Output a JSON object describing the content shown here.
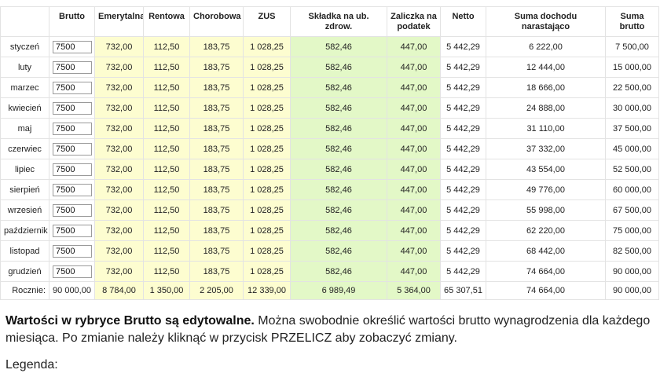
{
  "columns": {
    "brutto": "Brutto",
    "emerytalna": "Emerytalna",
    "rentowa": "Rentowa",
    "chorobowa": "Chorobowa",
    "zus": "ZUS",
    "skladka": "Składka na ub. zdrow.",
    "zaliczka": "Zaliczka na podatek",
    "netto": "Netto",
    "suma_dochodu": "Suma dochodu narastająco",
    "suma_brutto": "Suma brutto"
  },
  "rows": [
    {
      "month": "styczeń",
      "brutto": "7500",
      "emerytalna": "732,00",
      "rentowa": "112,50",
      "chorobowa": "183,75",
      "zus": "1 028,25",
      "skladka": "582,46",
      "zaliczka": "447,00",
      "netto": "5 442,29",
      "suma_dochodu": "6 222,00",
      "suma_brutto": "7 500,00"
    },
    {
      "month": "luty",
      "brutto": "7500",
      "emerytalna": "732,00",
      "rentowa": "112,50",
      "chorobowa": "183,75",
      "zus": "1 028,25",
      "skladka": "582,46",
      "zaliczka": "447,00",
      "netto": "5 442,29",
      "suma_dochodu": "12 444,00",
      "suma_brutto": "15 000,00"
    },
    {
      "month": "marzec",
      "brutto": "7500",
      "emerytalna": "732,00",
      "rentowa": "112,50",
      "chorobowa": "183,75",
      "zus": "1 028,25",
      "skladka": "582,46",
      "zaliczka": "447,00",
      "netto": "5 442,29",
      "suma_dochodu": "18 666,00",
      "suma_brutto": "22 500,00"
    },
    {
      "month": "kwiecień",
      "brutto": "7500",
      "emerytalna": "732,00",
      "rentowa": "112,50",
      "chorobowa": "183,75",
      "zus": "1 028,25",
      "skladka": "582,46",
      "zaliczka": "447,00",
      "netto": "5 442,29",
      "suma_dochodu": "24 888,00",
      "suma_brutto": "30 000,00"
    },
    {
      "month": "maj",
      "brutto": "7500",
      "emerytalna": "732,00",
      "rentowa": "112,50",
      "chorobowa": "183,75",
      "zus": "1 028,25",
      "skladka": "582,46",
      "zaliczka": "447,00",
      "netto": "5 442,29",
      "suma_dochodu": "31 110,00",
      "suma_brutto": "37 500,00"
    },
    {
      "month": "czerwiec",
      "brutto": "7500",
      "emerytalna": "732,00",
      "rentowa": "112,50",
      "chorobowa": "183,75",
      "zus": "1 028,25",
      "skladka": "582,46",
      "zaliczka": "447,00",
      "netto": "5 442,29",
      "suma_dochodu": "37 332,00",
      "suma_brutto": "45 000,00"
    },
    {
      "month": "lipiec",
      "brutto": "7500",
      "emerytalna": "732,00",
      "rentowa": "112,50",
      "chorobowa": "183,75",
      "zus": "1 028,25",
      "skladka": "582,46",
      "zaliczka": "447,00",
      "netto": "5 442,29",
      "suma_dochodu": "43 554,00",
      "suma_brutto": "52 500,00"
    },
    {
      "month": "sierpień",
      "brutto": "7500",
      "emerytalna": "732,00",
      "rentowa": "112,50",
      "chorobowa": "183,75",
      "zus": "1 028,25",
      "skladka": "582,46",
      "zaliczka": "447,00",
      "netto": "5 442,29",
      "suma_dochodu": "49 776,00",
      "suma_brutto": "60 000,00"
    },
    {
      "month": "wrzesień",
      "brutto": "7500",
      "emerytalna": "732,00",
      "rentowa": "112,50",
      "chorobowa": "183,75",
      "zus": "1 028,25",
      "skladka": "582,46",
      "zaliczka": "447,00",
      "netto": "5 442,29",
      "suma_dochodu": "55 998,00",
      "suma_brutto": "67 500,00"
    },
    {
      "month": "październik",
      "brutto": "7500",
      "emerytalna": "732,00",
      "rentowa": "112,50",
      "chorobowa": "183,75",
      "zus": "1 028,25",
      "skladka": "582,46",
      "zaliczka": "447,00",
      "netto": "5 442,29",
      "suma_dochodu": "62 220,00",
      "suma_brutto": "75 000,00"
    },
    {
      "month": "listopad",
      "brutto": "7500",
      "emerytalna": "732,00",
      "rentowa": "112,50",
      "chorobowa": "183,75",
      "zus": "1 028,25",
      "skladka": "582,46",
      "zaliczka": "447,00",
      "netto": "5 442,29",
      "suma_dochodu": "68 442,00",
      "suma_brutto": "82 500,00"
    },
    {
      "month": "grudzień",
      "brutto": "7500",
      "emerytalna": "732,00",
      "rentowa": "112,50",
      "chorobowa": "183,75",
      "zus": "1 028,25",
      "skladka": "582,46",
      "zaliczka": "447,00",
      "netto": "5 442,29",
      "suma_dochodu": "74 664,00",
      "suma_brutto": "90 000,00"
    }
  ],
  "totals": {
    "label": "Rocznie:",
    "brutto": "90 000,00",
    "emerytalna": "8 784,00",
    "rentowa": "1 350,00",
    "chorobowa": "2 205,00",
    "zus": "12 339,00",
    "skladka": "6 989,49",
    "zaliczka": "5 364,00",
    "netto": "65 307,51",
    "suma_dochodu": "74 664,00",
    "suma_brutto": "90 000,00"
  },
  "note": {
    "bold": "Wartości w rybryce Brutto są edytowalne.",
    "text": " Można swobodnie określić wartości brutto wynagrodzenia dla każdego miesiąca. Po zmianie należy kliknąć w przycisk PRZELICZ aby zobaczyć zmiany."
  },
  "legend_label": "Legenda:",
  "colors": {
    "zus_columns": "#fdfdd0",
    "health_tax_columns": "#e3f8c7",
    "border": "#e3e3e3"
  }
}
